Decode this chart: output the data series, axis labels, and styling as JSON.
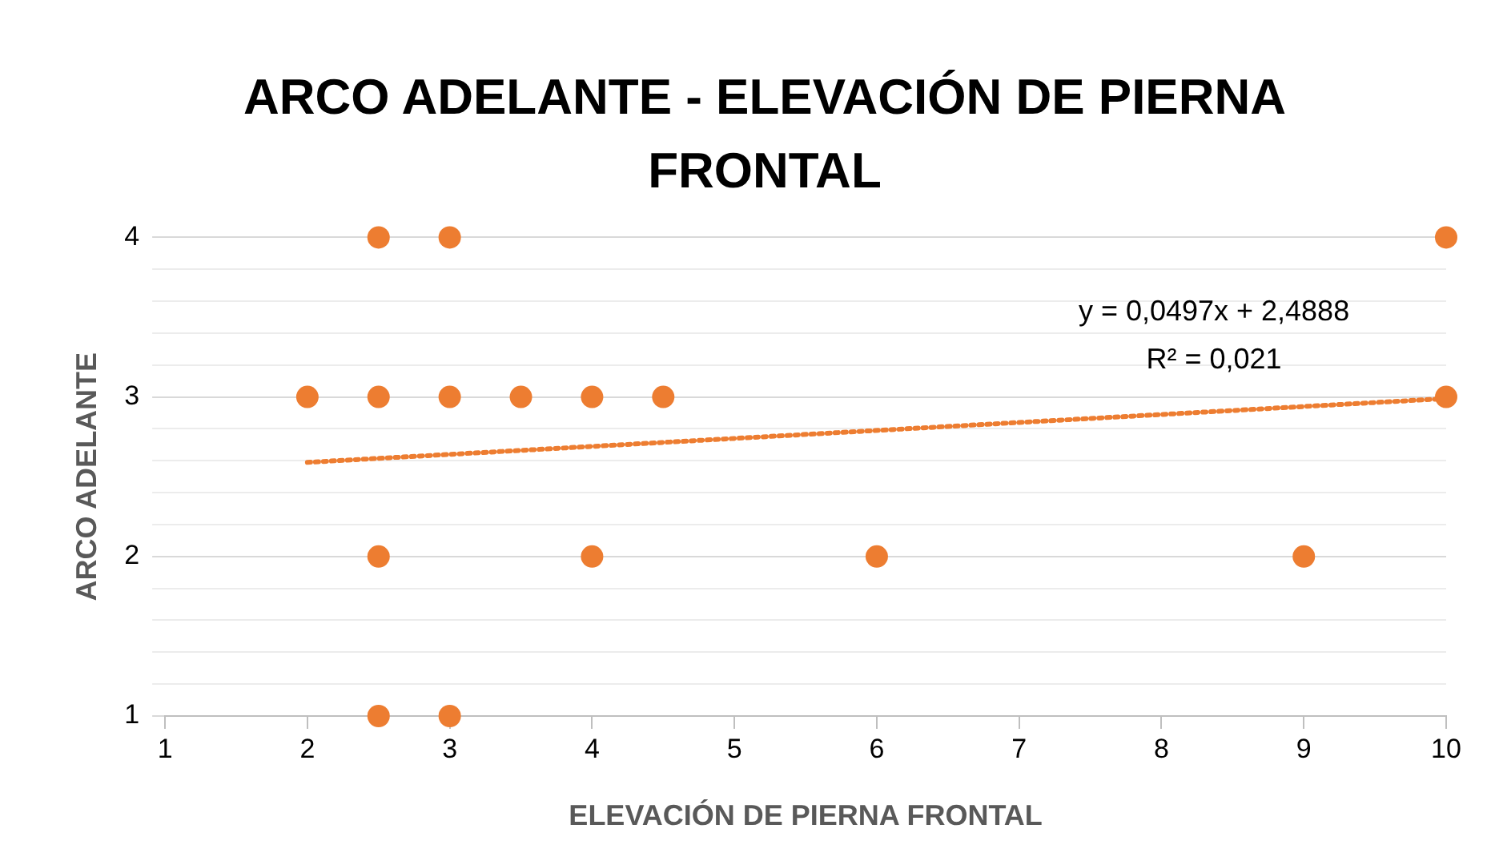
{
  "chart_data": {
    "type": "scatter",
    "title": "ARCO ADELANTE - ELEVACIÓN DE PIERNA FRONTAL",
    "xlabel": "ELEVACIÓN DE PIERNA FRONTAL",
    "ylabel": "ARCO ADELANTE",
    "xlim": [
      1,
      10
    ],
    "xticks": [
      1,
      2,
      3,
      4,
      5,
      6,
      7,
      8,
      9,
      10
    ],
    "ylim": [
      1,
      4
    ],
    "yticks": [
      1,
      {
        "value": 1.2,
        "label": null
      },
      {
        "value": 1.4,
        "label": null
      },
      {
        "value": 1.6,
        "label": null
      },
      {
        "value": 1.8,
        "label": null
      },
      2,
      {
        "value": 2.2,
        "label": null
      },
      {
        "value": 2.4,
        "label": null
      },
      {
        "value": 2.6,
        "label": null
      },
      {
        "value": 2.8,
        "label": null
      },
      3,
      {
        "value": 3.2,
        "label": null
      },
      {
        "value": 3.4,
        "label": null
      },
      {
        "value": 3.6,
        "label": null
      },
      {
        "value": 3.8,
        "label": null
      },
      4
    ],
    "grid": "y",
    "legend": false,
    "marker": "circle",
    "series": [
      {
        "color": "#ed7d31",
        "x": [
          2.5,
          3,
          10,
          2,
          2.5,
          3,
          3.5,
          4,
          4.5,
          10,
          2.5,
          4,
          6,
          9,
          2.5,
          3
        ],
        "values": [
          4,
          4,
          4,
          3,
          3,
          3,
          3,
          3,
          3,
          3,
          2,
          2,
          2,
          2,
          1,
          1
        ]
      },
      {
        "type": "line",
        "color": "#ed7d31",
        "line_style": "dotted",
        "marker": "none",
        "x": [
          2,
          10
        ],
        "values": [
          2.59,
          2.99
        ]
      }
    ],
    "annotations": [
      "y = 0,0497x + 2,4888",
      "R² = 0,021"
    ]
  }
}
